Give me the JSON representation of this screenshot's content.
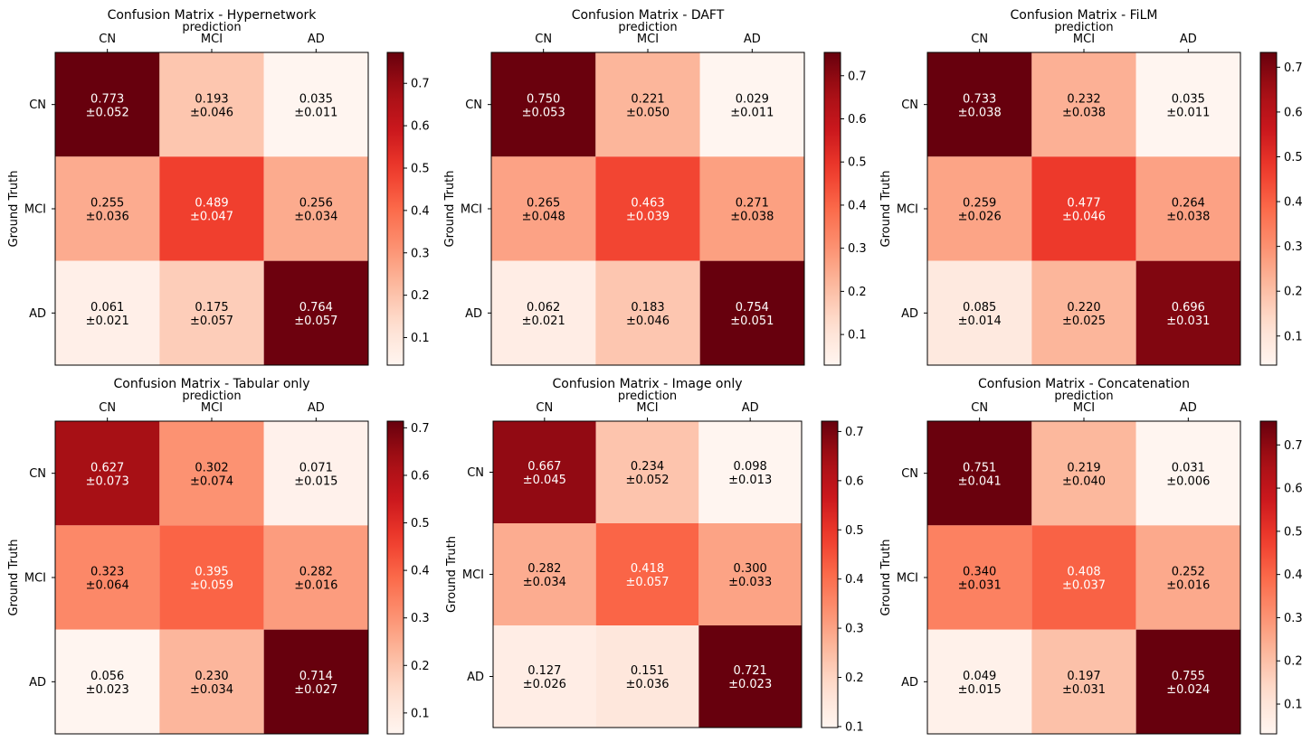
{
  "chart_data": [
    {
      "type": "heatmap",
      "title": "Confusion Matrix - Hypernetwork",
      "xlabel": "prediction",
      "ylabel": "Ground Truth",
      "x_categories": [
        "CN",
        "MCI",
        "AD"
      ],
      "y_categories": [
        "CN",
        "MCI",
        "AD"
      ],
      "means": [
        [
          0.773,
          0.193,
          0.035
        ],
        [
          0.255,
          0.489,
          0.256
        ],
        [
          0.061,
          0.175,
          0.764
        ]
      ],
      "stds": [
        [
          "0.052",
          "0.046",
          "0.011"
        ],
        [
          "0.036",
          "0.047",
          "0.034"
        ],
        [
          "0.021",
          "0.057",
          "0.057"
        ]
      ],
      "colorbar_ticks": [
        0.1,
        0.2,
        0.3,
        0.4,
        0.5,
        0.6,
        0.7
      ]
    },
    {
      "type": "heatmap",
      "title": "Confusion Matrix - DAFT",
      "xlabel": "prediction",
      "ylabel": "Ground Truth",
      "x_categories": [
        "CN",
        "MCI",
        "AD"
      ],
      "y_categories": [
        "CN",
        "MCI",
        "AD"
      ],
      "means": [
        [
          0.75,
          0.221,
          0.029
        ],
        [
          0.265,
          0.463,
          0.271
        ],
        [
          0.062,
          0.183,
          0.754
        ]
      ],
      "stds": [
        [
          "0.053",
          "0.050",
          "0.011"
        ],
        [
          "0.048",
          "0.039",
          "0.038"
        ],
        [
          "0.021",
          "0.046",
          "0.051"
        ]
      ],
      "colorbar_ticks": [
        0.1,
        0.2,
        0.3,
        0.4,
        0.5,
        0.6,
        0.7
      ]
    },
    {
      "type": "heatmap",
      "title": "Confusion Matrix - FiLM",
      "xlabel": "prediction",
      "ylabel": "Ground Truth",
      "x_categories": [
        "CN",
        "MCI",
        "AD"
      ],
      "y_categories": [
        "CN",
        "MCI",
        "AD"
      ],
      "means": [
        [
          0.733,
          0.232,
          0.035
        ],
        [
          0.259,
          0.477,
          0.264
        ],
        [
          0.085,
          0.22,
          0.696
        ]
      ],
      "stds": [
        [
          "0.038",
          "0.038",
          "0.011"
        ],
        [
          "0.026",
          "0.046",
          "0.038"
        ],
        [
          "0.014",
          "0.025",
          "0.031"
        ]
      ],
      "colorbar_ticks": [
        0.1,
        0.2,
        0.3,
        0.4,
        0.5,
        0.6,
        0.7
      ]
    },
    {
      "type": "heatmap",
      "title": "Confusion Matrix - Tabular only",
      "xlabel": "prediction",
      "ylabel": "Ground Truth",
      "x_categories": [
        "CN",
        "MCI",
        "AD"
      ],
      "y_categories": [
        "CN",
        "MCI",
        "AD"
      ],
      "means": [
        [
          0.627,
          0.302,
          0.071
        ],
        [
          0.323,
          0.395,
          0.282
        ],
        [
          0.056,
          0.23,
          0.714
        ]
      ],
      "stds": [
        [
          "0.073",
          "0.074",
          "0.015"
        ],
        [
          "0.064",
          "0.059",
          "0.016"
        ],
        [
          "0.023",
          "0.034",
          "0.027"
        ]
      ],
      "colorbar_ticks": [
        0.1,
        0.2,
        0.3,
        0.4,
        0.5,
        0.6,
        0.7
      ]
    },
    {
      "type": "heatmap",
      "title": "Confusion Matrix - Image only",
      "xlabel": "prediction",
      "ylabel": "Ground Truth",
      "x_categories": [
        "CN",
        "MCI",
        "AD"
      ],
      "y_categories": [
        "CN",
        "MCI",
        "AD"
      ],
      "means": [
        [
          0.667,
          0.234,
          0.098
        ],
        [
          0.282,
          0.418,
          0.3
        ],
        [
          0.127,
          0.151,
          0.721
        ]
      ],
      "stds": [
        [
          "0.045",
          "0.052",
          "0.013"
        ],
        [
          "0.034",
          "0.057",
          "0.033"
        ],
        [
          "0.026",
          "0.036",
          "0.023"
        ]
      ],
      "colorbar_ticks": [
        0.1,
        0.2,
        0.3,
        0.4,
        0.5,
        0.6,
        0.7
      ]
    },
    {
      "type": "heatmap",
      "title": "Confusion Matrix - Concatenation",
      "xlabel": "prediction",
      "ylabel": "Ground Truth",
      "x_categories": [
        "CN",
        "MCI",
        "AD"
      ],
      "y_categories": [
        "CN",
        "MCI",
        "AD"
      ],
      "means": [
        [
          0.751,
          0.219,
          0.031
        ],
        [
          0.34,
          0.408,
          0.252
        ],
        [
          0.049,
          0.197,
          0.755
        ]
      ],
      "stds": [
        [
          "0.041",
          "0.040",
          "0.006"
        ],
        [
          "0.031",
          "0.037",
          "0.016"
        ],
        [
          "0.015",
          "0.031",
          "0.024"
        ]
      ],
      "colorbar_ticks": [
        0.1,
        0.2,
        0.3,
        0.4,
        0.5,
        0.6,
        0.7
      ]
    }
  ]
}
